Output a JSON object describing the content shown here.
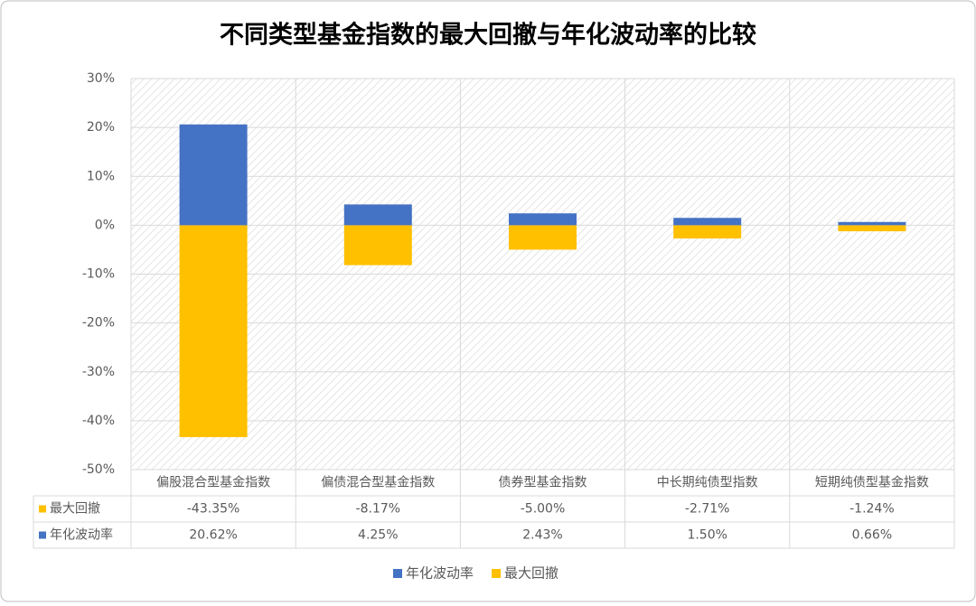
{
  "chart_data": {
    "type": "bar",
    "stacked": true,
    "title": "不同类型基金指数的最大回撤与年化波动率的比较",
    "categories": [
      "偏股混合型基金指数",
      "偏债混合型基金指数",
      "债券型基金指数",
      "中长期纯债型指数",
      "短期纯债型基金指数"
    ],
    "series": [
      {
        "name": "最大回撤",
        "color": "#ffc000",
        "values": [
          -43.35,
          -8.17,
          -5.0,
          -2.71,
          -1.24
        ],
        "value_labels": [
          "-43.35%",
          "-8.17%",
          "-5.00%",
          "-2.71%",
          "-1.24%"
        ]
      },
      {
        "name": "年化波动率",
        "color": "#4472c4",
        "values": [
          20.62,
          4.25,
          2.43,
          1.5,
          0.66
        ],
        "value_labels": [
          "20.62%",
          "4.25%",
          "2.43%",
          "1.50%",
          "0.66%"
        ]
      }
    ],
    "ylim": [
      -50,
      30
    ],
    "yticks": [
      {
        "value": -50,
        "label": "-50%"
      },
      {
        "value": -40,
        "label": "-40%"
      },
      {
        "value": -30,
        "label": "-30%"
      },
      {
        "value": -20,
        "label": "-20%"
      },
      {
        "value": -10,
        "label": "-10%"
      },
      {
        "value": 0,
        "label": "0%"
      },
      {
        "value": 10,
        "label": "10%"
      },
      {
        "value": 20,
        "label": "20%"
      },
      {
        "value": 30,
        "label": "30%"
      }
    ],
    "grid": true,
    "legend": "bottom",
    "data_table": true
  }
}
